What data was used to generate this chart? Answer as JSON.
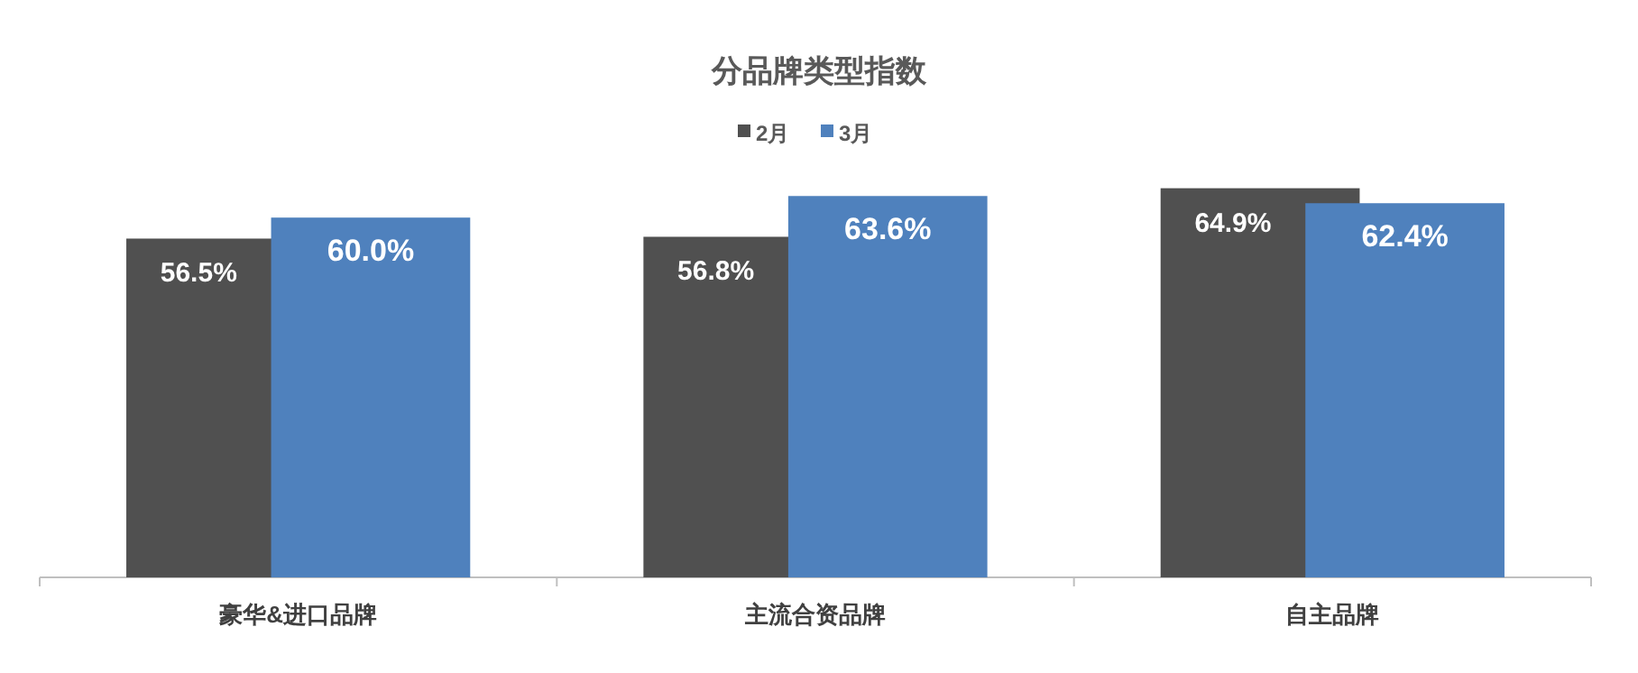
{
  "chart_data": {
    "type": "bar",
    "title": "分品牌类型指数",
    "categories": [
      "豪华&进口品牌",
      "主流合资品牌",
      "自主品牌"
    ],
    "series": [
      {
        "name": "2月",
        "color": "#505050",
        "values": [
          56.5,
          56.8,
          64.9
        ],
        "value_labels": [
          "56.5%",
          "56.8%",
          "64.9%"
        ]
      },
      {
        "name": "3月",
        "color": "#4f81bd",
        "values": [
          60.0,
          63.6,
          62.4
        ],
        "value_labels": [
          "60.0%",
          "63.6%",
          "62.4%"
        ]
      }
    ],
    "legend": "top"
  }
}
